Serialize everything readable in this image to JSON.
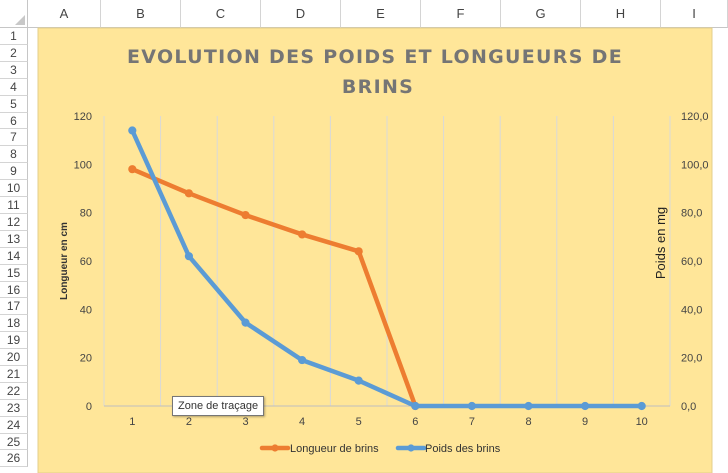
{
  "spreadsheet": {
    "columns": [
      "A",
      "B",
      "C",
      "D",
      "E",
      "F",
      "G",
      "H",
      "I"
    ],
    "rows": [
      "1",
      "2",
      "3",
      "4",
      "5",
      "6",
      "7",
      "8",
      "9",
      "10",
      "11",
      "12",
      "13",
      "14",
      "15",
      "16",
      "17",
      "18",
      "19",
      "20",
      "21",
      "22",
      "23",
      "24",
      "25",
      "26"
    ]
  },
  "tooltip": "Zone de traçage",
  "chart_data": {
    "type": "line",
    "title_line1": "EVOLUTION DES POIDS ET LONGUEURS DE",
    "title_line2": "BRINS",
    "ylabel_left": "Longueur en cm",
    "ylabel_right": "Poids en mg",
    "categories": [
      "1",
      "2",
      "3",
      "4",
      "5",
      "6",
      "7",
      "8",
      "9",
      "10"
    ],
    "y_left": {
      "min": 0,
      "max": 120,
      "step": 20,
      "ticks": [
        "0",
        "20",
        "40",
        "60",
        "80",
        "100",
        "120"
      ]
    },
    "y_right": {
      "min": 0,
      "max": 120,
      "step": 20,
      "ticks": [
        "0,0",
        "20,0",
        "40,0",
        "60,0",
        "80,0",
        "100,0",
        "120,0"
      ]
    },
    "grid": "vertical",
    "legend_position": "bottom",
    "background": "#ffe699",
    "series": [
      {
        "name": "Longueur de brins",
        "axis": "left",
        "color": "#ed7d31",
        "values": [
          98,
          88,
          79,
          71,
          64,
          0,
          null,
          null,
          null,
          null
        ]
      },
      {
        "name": "Poids des brins",
        "axis": "right",
        "color": "#5b9bd5",
        "values": [
          114,
          62,
          34.5,
          19,
          10.5,
          0,
          0,
          0,
          0,
          0
        ]
      }
    ]
  }
}
